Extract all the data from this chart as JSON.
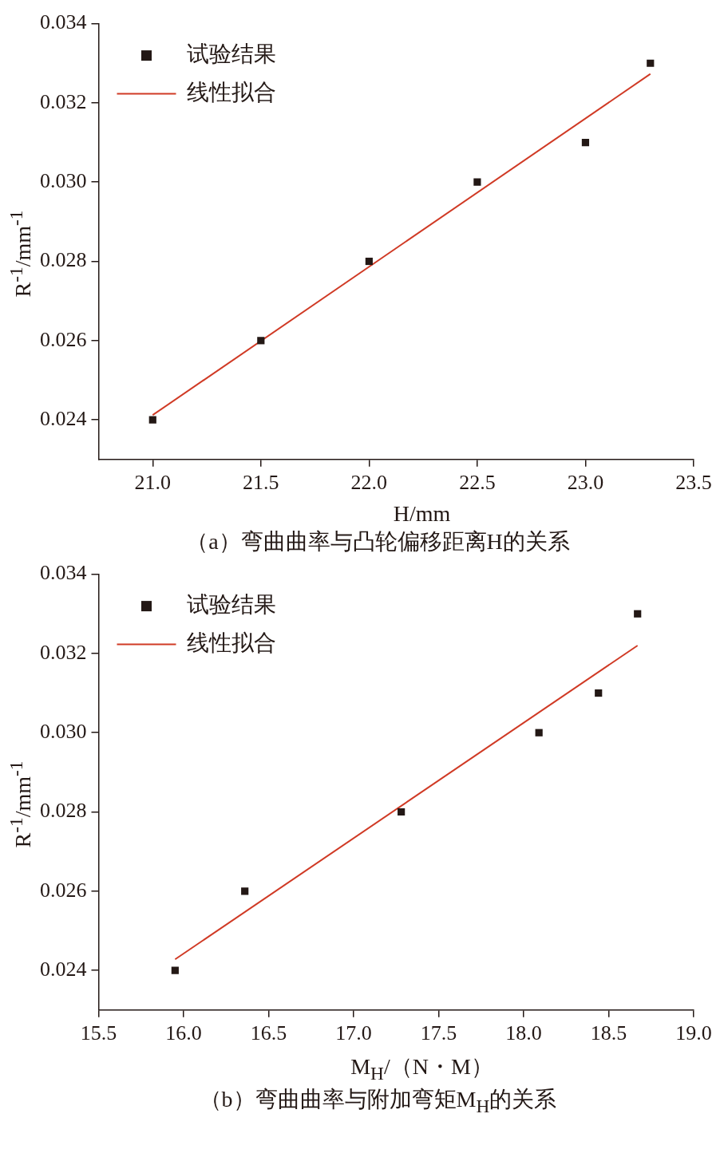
{
  "chart_data": [
    {
      "type": "scatter",
      "xlabel": "H/mm",
      "ylabel": "R$^{-1}$/mm$^{-1}$",
      "annotations": [
        "（a）弯曲曲率与凸轮偏移距离H的关系"
      ],
      "xlim": [
        20.75,
        23.5
      ],
      "ylim": [
        0.023,
        0.034
      ],
      "xticks": [
        {
          "value": 21,
          "label": "21.0"
        },
        {
          "value": 21.5,
          "label": "21.5"
        },
        {
          "value": 22,
          "label": "22.0"
        },
        {
          "value": 22.5,
          "label": "22.5"
        },
        {
          "value": 23,
          "label": "23.0"
        },
        {
          "value": 23.5,
          "label": "23.5"
        }
      ],
      "yticks": [
        0.024,
        0.026,
        0.028,
        {
          "value": 0.03,
          "label": "0.030"
        },
        0.032,
        0.034
      ],
      "legend": "top left",
      "marker": "square",
      "series": [
        {
          "name": "试验结果",
          "type": "scatter",
          "color": "#231815",
          "x": [
            21,
            21.5,
            22,
            22.5,
            23,
            23.3
          ],
          "values": [
            0.024,
            0.026,
            0.028,
            0.03,
            0.031,
            0.033
          ]
        },
        {
          "name": "线性拟合",
          "type": "line",
          "color": "#d03a25",
          "marker": "none",
          "x": [
            21,
            23.3
          ],
          "values": [
            0.02412,
            0.03273
          ]
        }
      ]
    },
    {
      "type": "scatter",
      "xlabel": "M$_{H}$/（N・M）",
      "ylabel": "R$^{-1}$/mm$^{-1}$",
      "annotations": [
        "（b）弯曲曲率与附加弯矩M$_{H}$的关系"
      ],
      "xlim": [
        15.5,
        19
      ],
      "ylim": [
        0.023,
        0.034
      ],
      "xticks": [
        15.5,
        {
          "value": 16,
          "label": "16.0"
        },
        16.5,
        {
          "value": 17,
          "label": "17.0"
        },
        17.5,
        {
          "value": 18,
          "label": "18.0"
        },
        18.5,
        {
          "value": 19,
          "label": "19.0"
        }
      ],
      "yticks": [
        0.024,
        0.026,
        0.028,
        {
          "value": 0.03,
          "label": "0.030"
        },
        0.032,
        0.034
      ],
      "legend": "top left",
      "marker": "square",
      "series": [
        {
          "name": "试验结果",
          "type": "scatter",
          "color": "#231815",
          "x": [
            15.95,
            16.36,
            17.28,
            18.09,
            18.44,
            18.67
          ],
          "values": [
            0.024,
            0.026,
            0.028,
            0.03,
            0.031,
            0.033
          ]
        },
        {
          "name": "线性拟合",
          "type": "line",
          "color": "#d03a25",
          "marker": "none",
          "x": [
            15.95,
            18.67
          ],
          "values": [
            0.02428,
            0.0322
          ]
        }
      ]
    }
  ]
}
